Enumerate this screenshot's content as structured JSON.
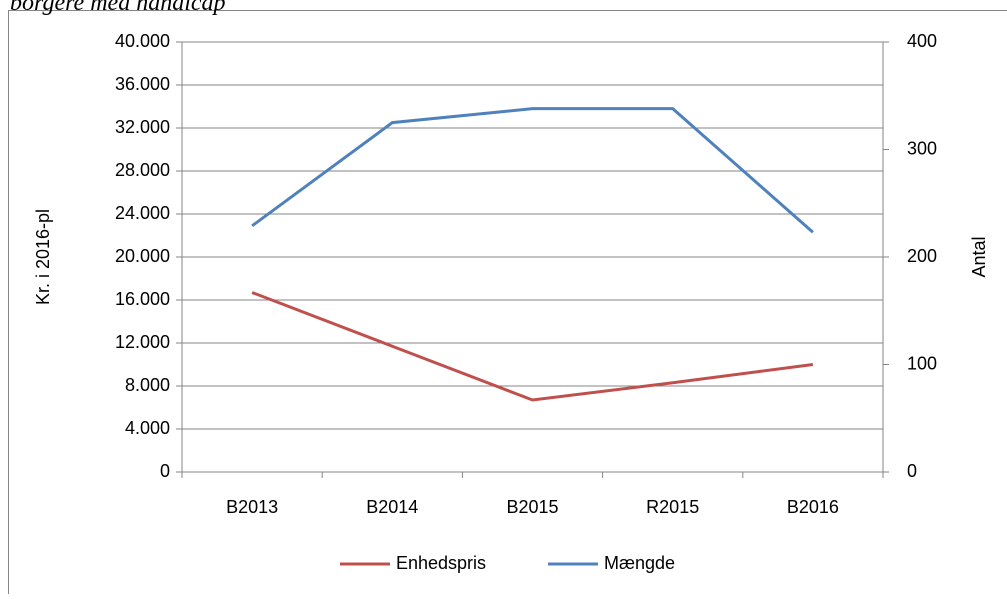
{
  "chart_data": {
    "type": "line",
    "title": "borgere med handicap",
    "y_label": "Kr. i 2016-pl",
    "y2_label": "Antal",
    "categories": [
      "B2013",
      "B2014",
      "B2015",
      "R2015",
      "B2016"
    ],
    "series": [
      {
        "name": "Enhedspris",
        "color": "#c0504d",
        "values": [
          16700,
          11700,
          6700,
          8300,
          10000
        ]
      },
      {
        "name": "Mængde",
        "color": "#4f81bd",
        "axis": "y2",
        "values": [
          229,
          325,
          338,
          338,
          223
        ]
      }
    ],
    "ylim": [
      0,
      40000
    ],
    "yticks": [
      0,
      {
        "value": 4000,
        "label": "4.000"
      },
      {
        "value": 8000,
        "label": "8.000"
      },
      {
        "value": 12000,
        "label": "12.000"
      },
      {
        "value": 16000,
        "label": "16.000"
      },
      {
        "value": 20000,
        "label": "20.000"
      },
      {
        "value": 24000,
        "label": "24.000"
      },
      {
        "value": 28000,
        "label": "28.000"
      },
      {
        "value": 32000,
        "label": "32.000"
      },
      {
        "value": 36000,
        "label": "36.000"
      },
      {
        "value": 40000,
        "label": "40.000"
      }
    ],
    "y2lim": [
      0,
      400
    ],
    "y2ticks": [
      0,
      100,
      200,
      300,
      400
    ],
    "grid": true,
    "legend": "bottom"
  }
}
